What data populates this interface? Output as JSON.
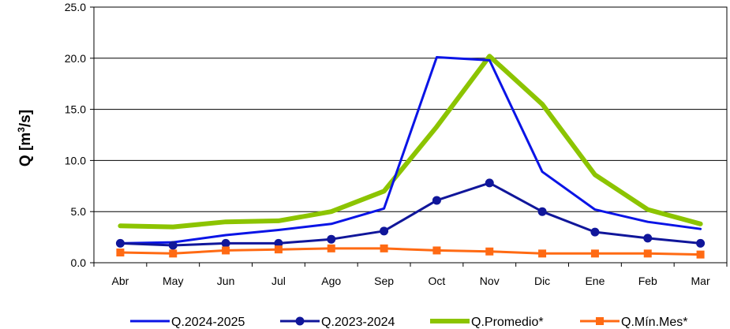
{
  "chart_data": {
    "type": "line",
    "ylabel_main": "Q [m",
    "ylabel_sup": "3",
    "ylabel_tail": "/s]",
    "xlabel": "",
    "ylim": [
      0,
      25
    ],
    "yticks": [
      "0.0",
      "5.0",
      "10.0",
      "15.0",
      "20.0",
      "25.0"
    ],
    "ytick_values": [
      0,
      5,
      10,
      15,
      20,
      25
    ],
    "grid": "horizontal",
    "legend_position": "bottom",
    "categories": [
      "Abr",
      "May",
      "Jun",
      "Jul",
      "Ago",
      "Sep",
      "Oct",
      "Nov",
      "Dic",
      "Ene",
      "Feb",
      "Mar"
    ],
    "series": [
      {
        "name": "Q.2024-2025",
        "color": "#0a14e6",
        "marker": "none",
        "width": "thin",
        "values": [
          1.9,
          2.0,
          2.7,
          3.2,
          3.8,
          5.3,
          20.1,
          19.8,
          8.9,
          5.2,
          4.0,
          3.3
        ]
      },
      {
        "name": "Q.2023-2024",
        "color": "#10169a",
        "marker": "circle",
        "width": "thin",
        "values": [
          1.9,
          1.7,
          1.9,
          1.9,
          2.3,
          3.1,
          6.1,
          7.8,
          5.0,
          3.0,
          2.4,
          1.9
        ]
      },
      {
        "name": "Q.Promedio*",
        "color": "#8cc400",
        "marker": "none",
        "width": "thick",
        "values": [
          3.6,
          3.5,
          4.0,
          4.1,
          5.0,
          7.0,
          13.3,
          20.2,
          15.5,
          8.6,
          5.2,
          3.8
        ]
      },
      {
        "name": "Q.Mín.Mes*",
        "color": "#ff6a13",
        "marker": "square",
        "width": "thin",
        "values": [
          1.0,
          0.9,
          1.2,
          1.3,
          1.4,
          1.4,
          1.2,
          1.1,
          0.9,
          0.9,
          0.9,
          0.8
        ]
      }
    ]
  }
}
